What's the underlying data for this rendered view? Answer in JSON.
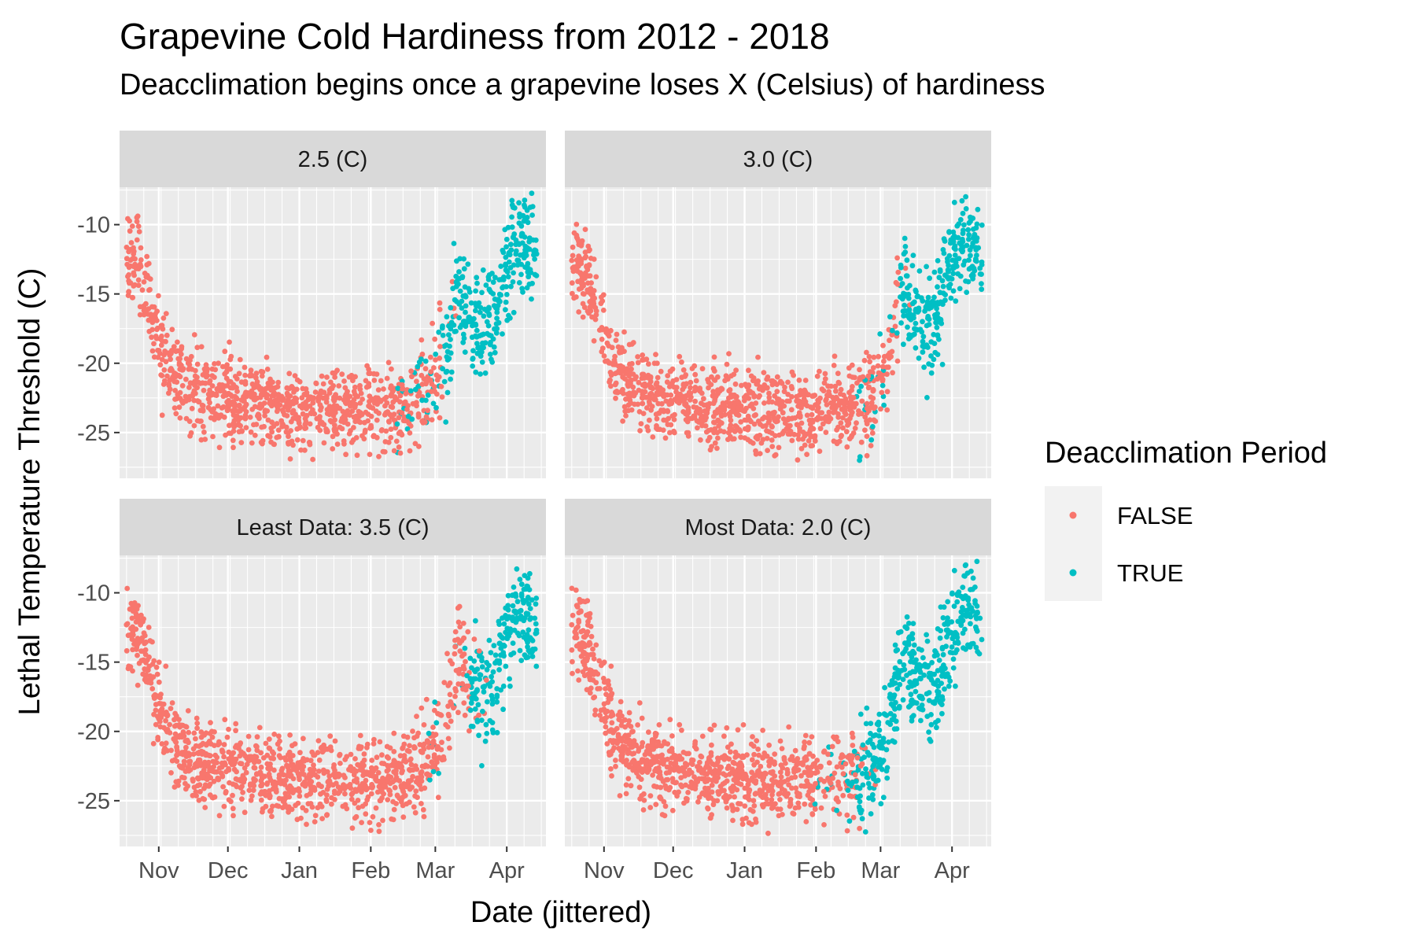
{
  "chart_data": {
    "type": "scatter",
    "title": "Grapevine Cold Hardiness from 2012 - 2018",
    "subtitle": "Deacclimation begins once a grapevine loses X (Celsius) of hardiness",
    "xlabel": "Date (jittered)",
    "ylabel": "Lethal Temperature Threshold (C)",
    "x_ticks": [
      "Nov",
      "Dec",
      "Jan",
      "Feb",
      "Mar",
      "Apr"
    ],
    "x_tick_day_offsets": [
      0,
      30,
      61,
      92,
      120,
      151
    ],
    "xlim_day_offsets": [
      -17,
      168
    ],
    "y_ticks": [
      -10,
      -15,
      -20,
      -25
    ],
    "ylim": [
      -28.3,
      -7.3
    ],
    "grid": true,
    "legend": {
      "title": "Deacclimation Period",
      "position": "right",
      "entries": [
        {
          "label": "FALSE",
          "color": "#F8766D"
        },
        {
          "label": "TRUE",
          "color": "#00BFC4"
        }
      ]
    },
    "panels": [
      {
        "label": "2.5 (C)",
        "deacclimation_start_day_offset": 123
      },
      {
        "label": "3.0 (C)",
        "deacclimation_start_day_offset": 128
      },
      {
        "label": "Least Data: 3.5 (C)",
        "deacclimation_start_day_offset": 135
      },
      {
        "label": "Most Data: 2.0 (C)",
        "deacclimation_start_day_offset": 110
      }
    ],
    "hardiness_trend": {
      "day_offsets": [
        -14,
        -10,
        -5,
        0,
        5,
        10,
        15,
        20,
        30,
        45,
        60,
        75,
        90,
        105,
        115,
        120,
        125,
        130,
        135,
        140,
        145,
        150,
        155,
        160,
        165
      ],
      "ltt_values": [
        -12.5,
        -13.0,
        -15.0,
        -18.5,
        -20.5,
        -21.5,
        -22.0,
        -22.3,
        -22.6,
        -23.0,
        -23.3,
        -23.5,
        -23.4,
        -23.3,
        -22.5,
        -21.0,
        -18.5,
        -14.5,
        -16.0,
        -17.5,
        -16.5,
        -13.5,
        -11.0,
        -11.5,
        -13.0
      ]
    },
    "series": [
      {
        "name": "FALSE",
        "color": "#F8766D"
      },
      {
        "name": "TRUE",
        "color": "#00BFC4"
      }
    ]
  }
}
